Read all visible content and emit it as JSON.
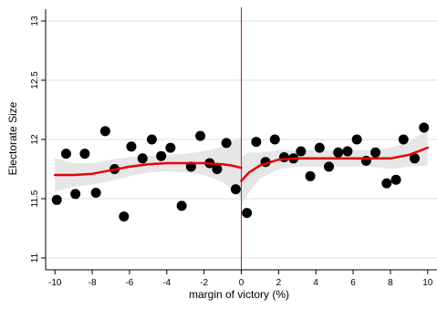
{
  "chart_data": {
    "type": "scatter",
    "xlabel": "margin of victory (%)",
    "ylabel": "Electorate Size",
    "xlim": [
      -10.5,
      10.5
    ],
    "ylim": [
      10.9,
      13.1
    ],
    "x_ticks": [
      -10,
      -8,
      -6,
      -4,
      -2,
      0,
      2,
      4,
      6,
      8,
      10
    ],
    "x_tick_labels": [
      "-10",
      "-8",
      "-6",
      "-4",
      "-2",
      "0",
      "2",
      "4",
      "6",
      "8",
      "10"
    ],
    "y_ticks": [
      11,
      11.5,
      12,
      12.5,
      13
    ],
    "y_tick_labels": [
      "11",
      "11.5",
      "12",
      "12.5",
      "13"
    ],
    "cutoff_x": 0,
    "grid": "horizontal",
    "legend": "none",
    "colors": {
      "points": "#000000",
      "fit_line": "#e8000b",
      "confidence_band": "#e6e6e6",
      "cutoff_line": "#a8234a",
      "gridline": "#dcdcdc",
      "axis": "#000000"
    },
    "points": [
      {
        "x": -9.9,
        "y": 11.49
      },
      {
        "x": -9.4,
        "y": 11.88
      },
      {
        "x": -8.9,
        "y": 11.54
      },
      {
        "x": -8.4,
        "y": 11.88
      },
      {
        "x": -7.8,
        "y": 11.55
      },
      {
        "x": -7.3,
        "y": 12.07
      },
      {
        "x": -6.8,
        "y": 11.75
      },
      {
        "x": -6.3,
        "y": 11.35
      },
      {
        "x": -5.9,
        "y": 11.94
      },
      {
        "x": -5.3,
        "y": 11.84
      },
      {
        "x": -4.8,
        "y": 12.0
      },
      {
        "x": -4.3,
        "y": 11.86
      },
      {
        "x": -3.8,
        "y": 11.93
      },
      {
        "x": -3.2,
        "y": 11.44
      },
      {
        "x": -2.7,
        "y": 11.77
      },
      {
        "x": -2.2,
        "y": 12.03
      },
      {
        "x": -1.7,
        "y": 11.8
      },
      {
        "x": -1.3,
        "y": 11.75
      },
      {
        "x": -0.8,
        "y": 11.97
      },
      {
        "x": -0.3,
        "y": 11.58
      },
      {
        "x": 0.3,
        "y": 11.38
      },
      {
        "x": 0.8,
        "y": 11.98
      },
      {
        "x": 1.3,
        "y": 11.81
      },
      {
        "x": 1.8,
        "y": 12.0
      },
      {
        "x": 2.3,
        "y": 11.85
      },
      {
        "x": 2.8,
        "y": 11.84
      },
      {
        "x": 3.2,
        "y": 11.9
      },
      {
        "x": 3.7,
        "y": 11.69
      },
      {
        "x": 4.2,
        "y": 11.93
      },
      {
        "x": 4.7,
        "y": 11.77
      },
      {
        "x": 5.2,
        "y": 11.89
      },
      {
        "x": 5.7,
        "y": 11.9
      },
      {
        "x": 6.2,
        "y": 12.0
      },
      {
        "x": 6.7,
        "y": 11.82
      },
      {
        "x": 7.2,
        "y": 11.89
      },
      {
        "x": 7.8,
        "y": 11.63
      },
      {
        "x": 8.3,
        "y": 11.66
      },
      {
        "x": 8.7,
        "y": 12.0
      },
      {
        "x": 9.3,
        "y": 11.84
      },
      {
        "x": 9.8,
        "y": 12.1
      }
    ],
    "fit_left": {
      "x": [
        -10,
        -9,
        -8,
        -7,
        -6,
        -5,
        -4,
        -3,
        -2,
        -1,
        -0.5,
        0
      ],
      "y": [
        11.7,
        11.7,
        11.71,
        11.74,
        11.77,
        11.79,
        11.8,
        11.8,
        11.8,
        11.79,
        11.78,
        11.76
      ],
      "ci_low": [
        11.56,
        11.6,
        11.62,
        11.65,
        11.69,
        11.72,
        11.73,
        11.72,
        11.7,
        11.64,
        11.58,
        11.5
      ],
      "ci_high": [
        11.84,
        11.8,
        11.8,
        11.83,
        11.85,
        11.86,
        11.87,
        11.88,
        11.9,
        11.94,
        11.98,
        12.02
      ]
    },
    "fit_right": {
      "x": [
        0,
        0.4,
        1,
        2,
        3,
        4,
        5,
        6,
        7,
        8,
        9,
        10
      ],
      "y": [
        11.65,
        11.72,
        11.78,
        11.83,
        11.84,
        11.84,
        11.84,
        11.84,
        11.84,
        11.84,
        11.87,
        11.93
      ],
      "ci_low": [
        11.45,
        11.55,
        11.67,
        11.75,
        11.77,
        11.77,
        11.77,
        11.77,
        11.77,
        11.75,
        11.77,
        11.78
      ],
      "ci_high": [
        11.85,
        11.89,
        11.89,
        11.91,
        11.91,
        11.91,
        11.91,
        11.91,
        11.91,
        11.93,
        11.98,
        12.08
      ]
    }
  }
}
